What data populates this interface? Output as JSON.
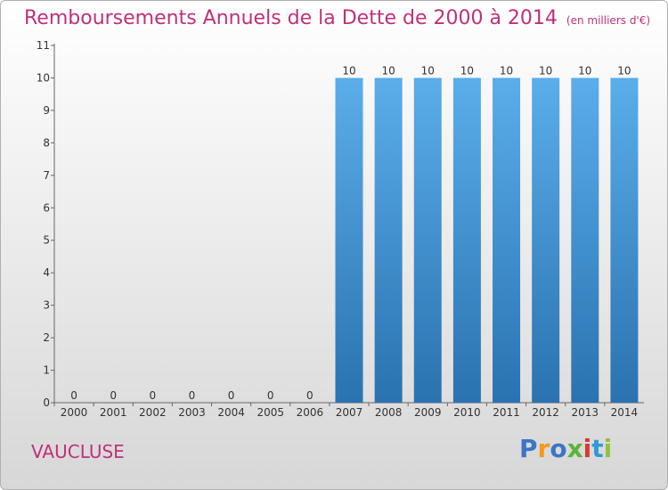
{
  "header": {
    "title": "Remboursements Annuels de la Dette de 2000 à 2014",
    "unit": "(en milliers d'€)"
  },
  "footer": {
    "region": "VAUCLUSE",
    "logo": [
      "P",
      "r",
      "o",
      "x",
      "i",
      "t",
      "i"
    ],
    "logo_colors": [
      "#3a76c6",
      "#f39a1e",
      "#3a76c6",
      "#5ab33a",
      "#d93a2b",
      "#2e9ad8",
      "#8bc43f"
    ]
  },
  "chart_data": {
    "type": "bar",
    "categories": [
      "2000",
      "2001",
      "2002",
      "2003",
      "2004",
      "2005",
      "2006",
      "2007",
      "2008",
      "2009",
      "2010",
      "2011",
      "2012",
      "2013",
      "2014"
    ],
    "values": [
      0,
      0,
      0,
      0,
      0,
      0,
      0,
      10,
      10,
      10,
      10,
      10,
      10,
      10,
      10
    ],
    "data_labels": [
      "0",
      "0",
      "0",
      "0",
      "0",
      "0",
      "0",
      "10",
      "10",
      "10",
      "10",
      "10",
      "10",
      "10",
      "10"
    ],
    "yticks": [
      0,
      1,
      2,
      3,
      4,
      5,
      6,
      7,
      8,
      9,
      10,
      11
    ],
    "ylim": [
      0,
      11
    ],
    "title": "Remboursements Annuels de la Dette de 2000 à 2014",
    "xlabel": "",
    "ylabel": "",
    "bar_color_top": "#5aaeea",
    "bar_color_bottom": "#2a72b0",
    "grid": false
  }
}
